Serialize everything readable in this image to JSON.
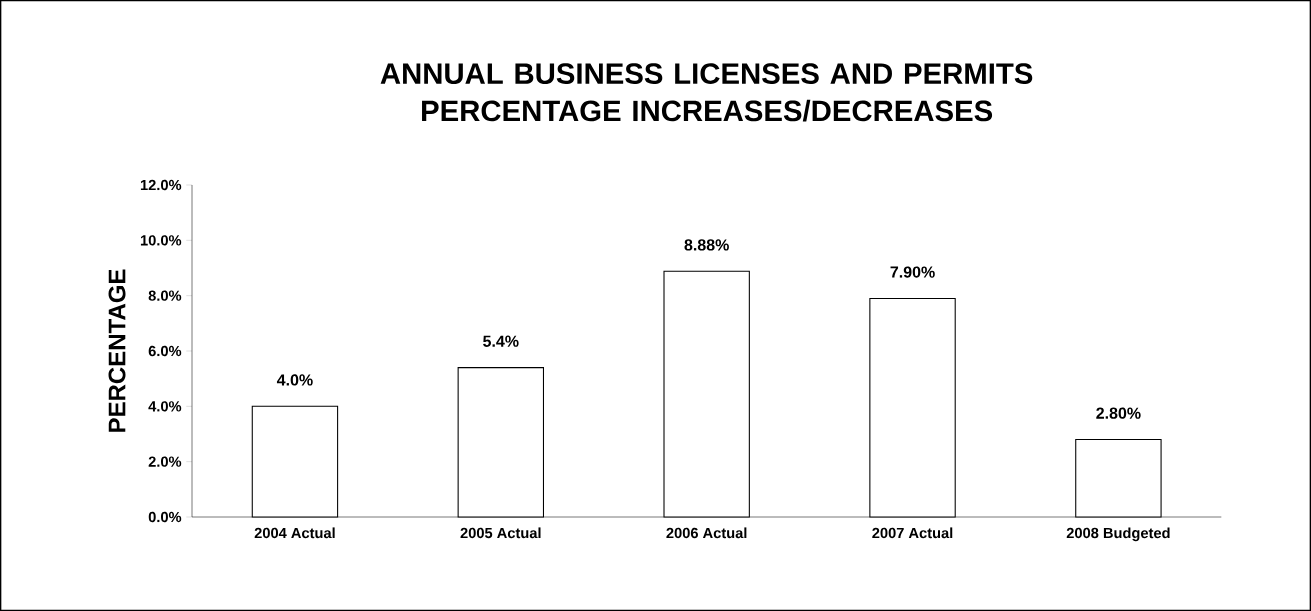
{
  "chart_data": {
    "type": "bar",
    "title": "ANNUAL BUSINESS LICENSES AND PERMITS PERCENTAGE INCREASES/DECREASES",
    "ylabel": "PERCENTAGE",
    "categories": [
      "2004 Actual",
      "2005 Actual",
      "2006 Actual",
      "2007 Actual",
      "2008 Budgeted"
    ],
    "values": [
      4.0,
      5.4,
      8.88,
      7.9,
      2.8
    ],
    "value_labels": [
      "4.0%",
      "5.4%",
      "8.88%",
      "7.90%",
      "2.80%"
    ],
    "color": "#ffffff",
    "ylim": [
      0,
      12
    ],
    "yticks": [
      {
        "value": 0,
        "label": "0.0%"
      },
      {
        "value": 2,
        "label": "2.0%"
      },
      {
        "value": 4,
        "label": "4.0%"
      },
      {
        "value": 6,
        "label": "6.0%"
      },
      {
        "value": 8,
        "label": "8.0%"
      },
      {
        "value": 10,
        "label": "10.0%"
      },
      {
        "value": 12,
        "label": "12.0%"
      }
    ]
  }
}
